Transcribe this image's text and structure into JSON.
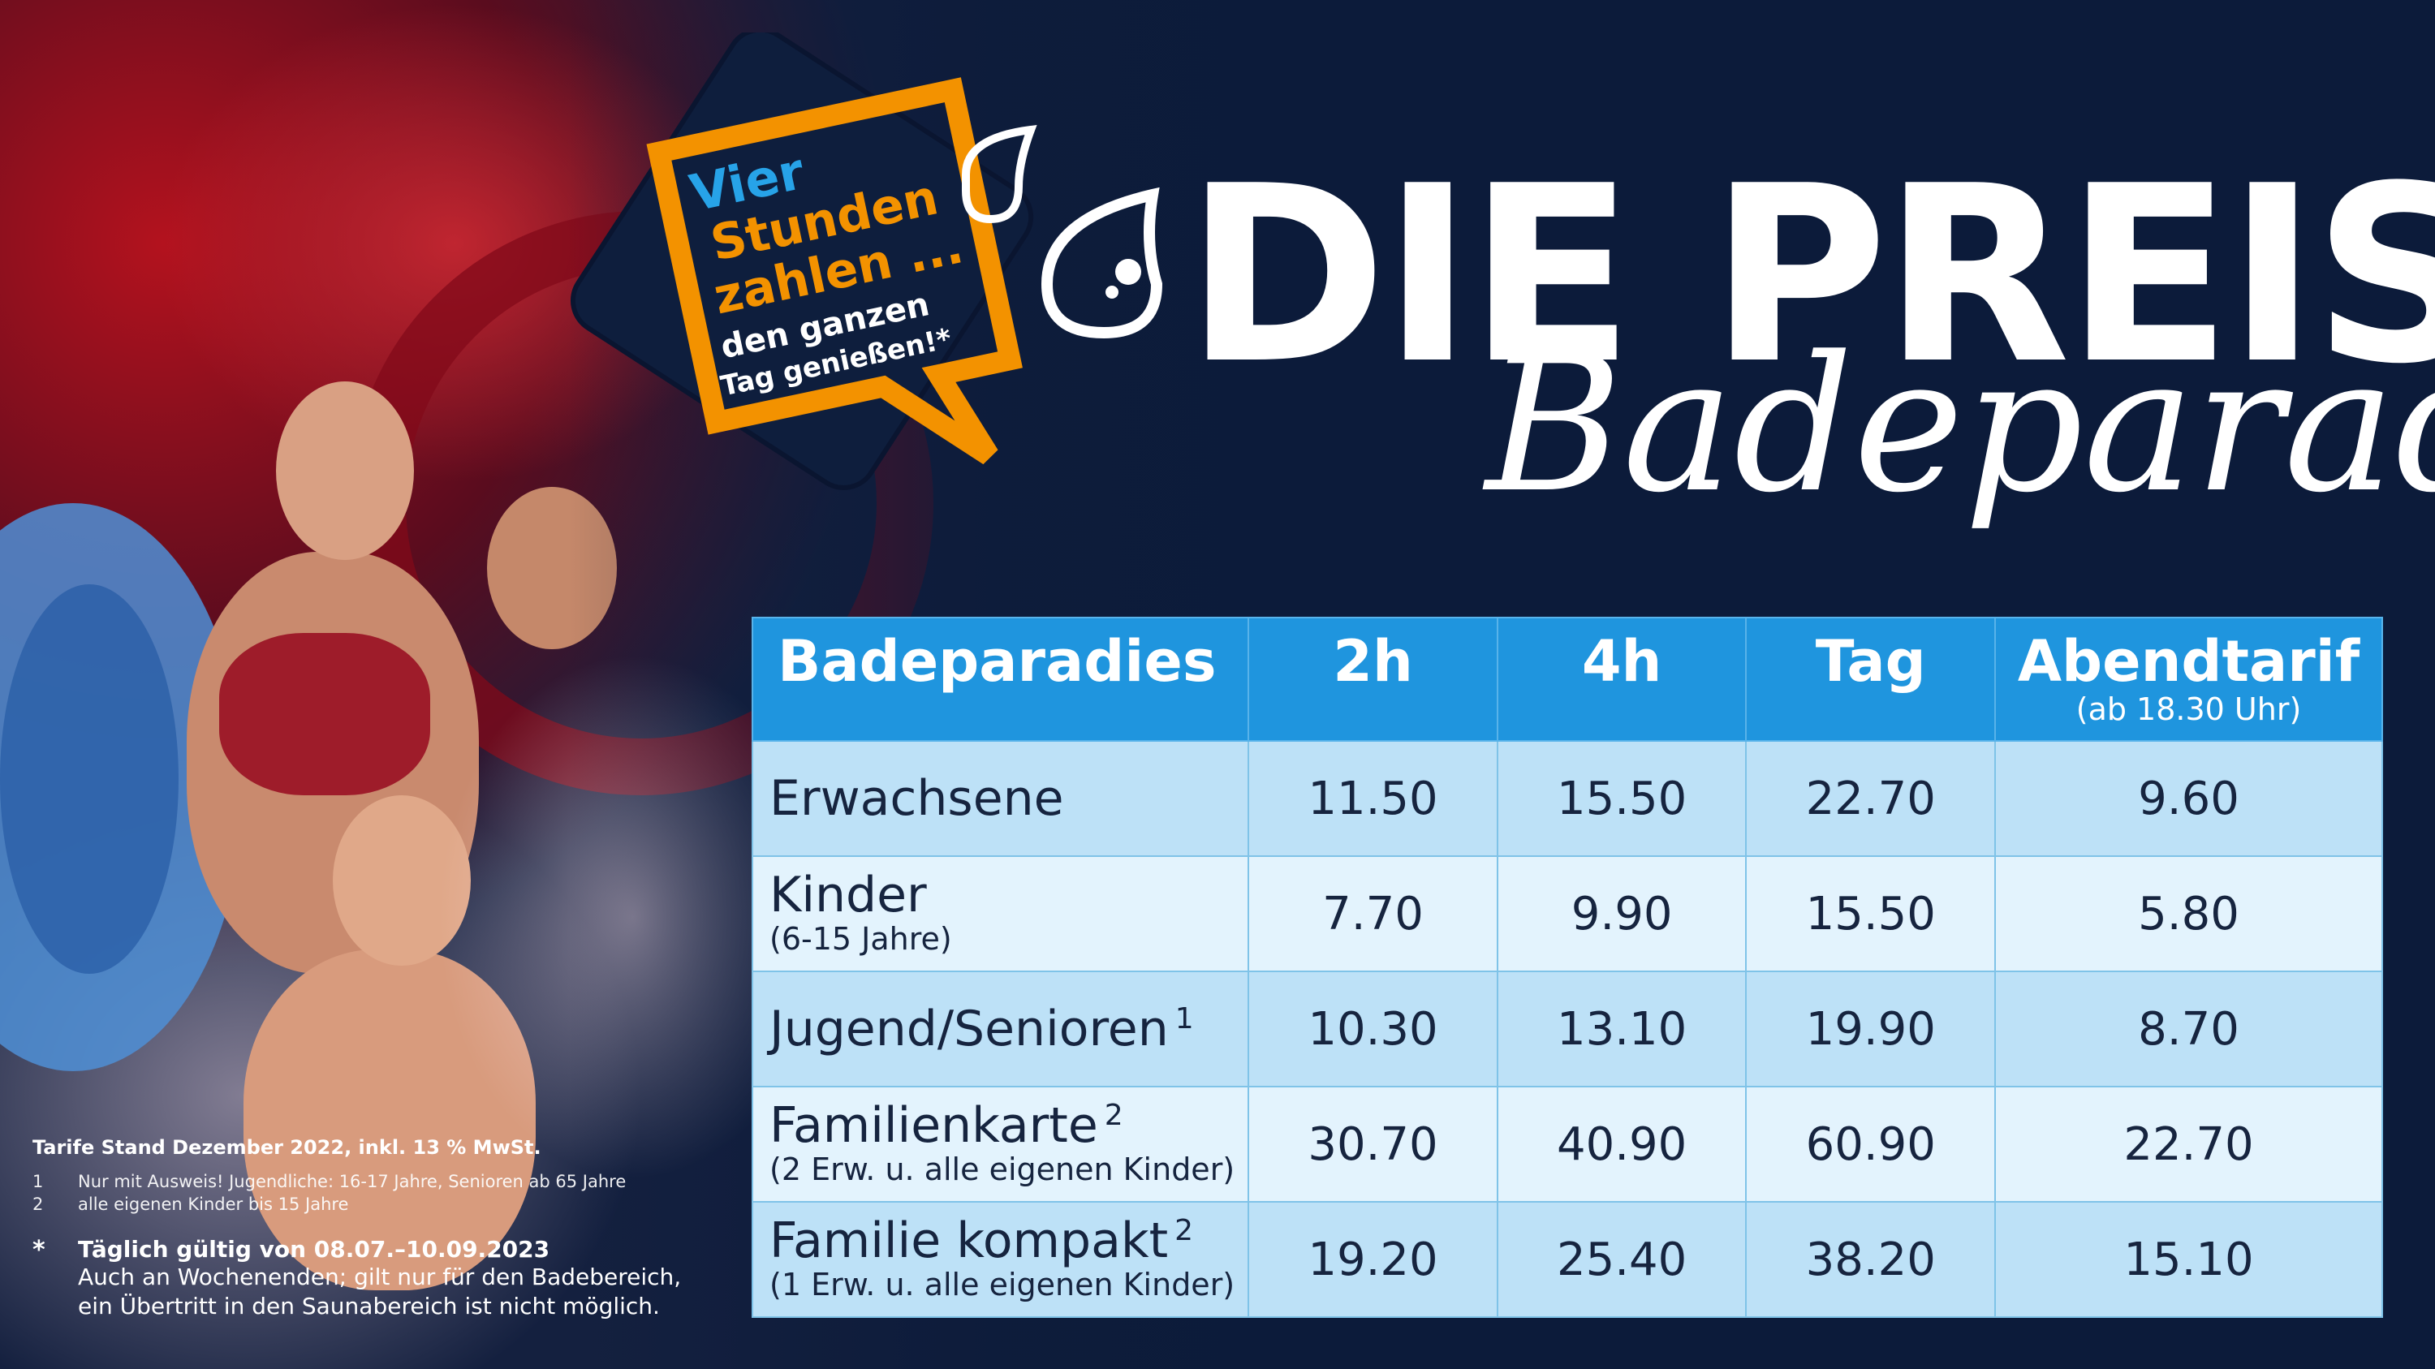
{
  "badge": {
    "line1": "Vier",
    "line2": "Stunden",
    "line3": "zahlen ...",
    "line4": "den ganzen",
    "line5": "Tag genießen!*"
  },
  "headline": {
    "title": "DIE PREISE",
    "subtitle": "Badeparadies"
  },
  "table": {
    "headers": [
      {
        "label": "Badeparadies",
        "sub": ""
      },
      {
        "label": "2h",
        "sub": ""
      },
      {
        "label": "4h",
        "sub": ""
      },
      {
        "label": "Tag",
        "sub": ""
      },
      {
        "label": "Abendtarif",
        "sub": "(ab 18.30 Uhr)"
      }
    ],
    "rows": [
      {
        "label": "Erwachsene",
        "sup": "",
        "sub": "",
        "values": [
          "11.50",
          "15.50",
          "22.70",
          "9.60"
        ]
      },
      {
        "label": "Kinder",
        "sup": "",
        "sub": "(6-15 Jahre)",
        "values": [
          "7.70",
          "9.90",
          "15.50",
          "5.80"
        ]
      },
      {
        "label": "Jugend/Senioren",
        "sup": "1",
        "sub": "",
        "values": [
          "10.30",
          "13.10",
          "19.90",
          "8.70"
        ]
      },
      {
        "label": "Familienkarte",
        "sup": "2",
        "sub": "(2 Erw. u. alle eigenen Kinder)",
        "values": [
          "30.70",
          "40.90",
          "60.90",
          "22.70"
        ]
      },
      {
        "label": "Familie kompakt",
        "sup": "2",
        "sub": "(1 Erw. u. alle eigenen Kinder)",
        "values": [
          "19.20",
          "25.40",
          "38.20",
          "15.10"
        ]
      }
    ]
  },
  "notes": {
    "stand": "Tarife Stand Dezember 2022, inkl. 13 % MwSt.",
    "n1_num": "1",
    "n1_text": "Nur mit Ausweis! Jugendliche: 16-17 Jahre, Senioren ab 65 Jahre",
    "n2_num": "2",
    "n2_text": "alle eigenen Kinder bis 15 Jahre",
    "star_mark": "*",
    "star_line1": "Täglich gültig von 08.07.–10.09.2023",
    "star_line2": "Auch an Wochenenden; gilt nur für den Badebereich,",
    "star_line3": "ein Übertritt in den Saunabereich ist nicht möglich."
  },
  "colors": {
    "background": "#0c1b3a",
    "table_header": "#1f95de",
    "row_light": "#e3f3fd",
    "row_mid": "#bde1f7",
    "badge_orange": "#f39200",
    "badge_blue_text": "#27a3e8"
  },
  "icons": [
    "water-drop-icon",
    "water-drop-icon"
  ]
}
